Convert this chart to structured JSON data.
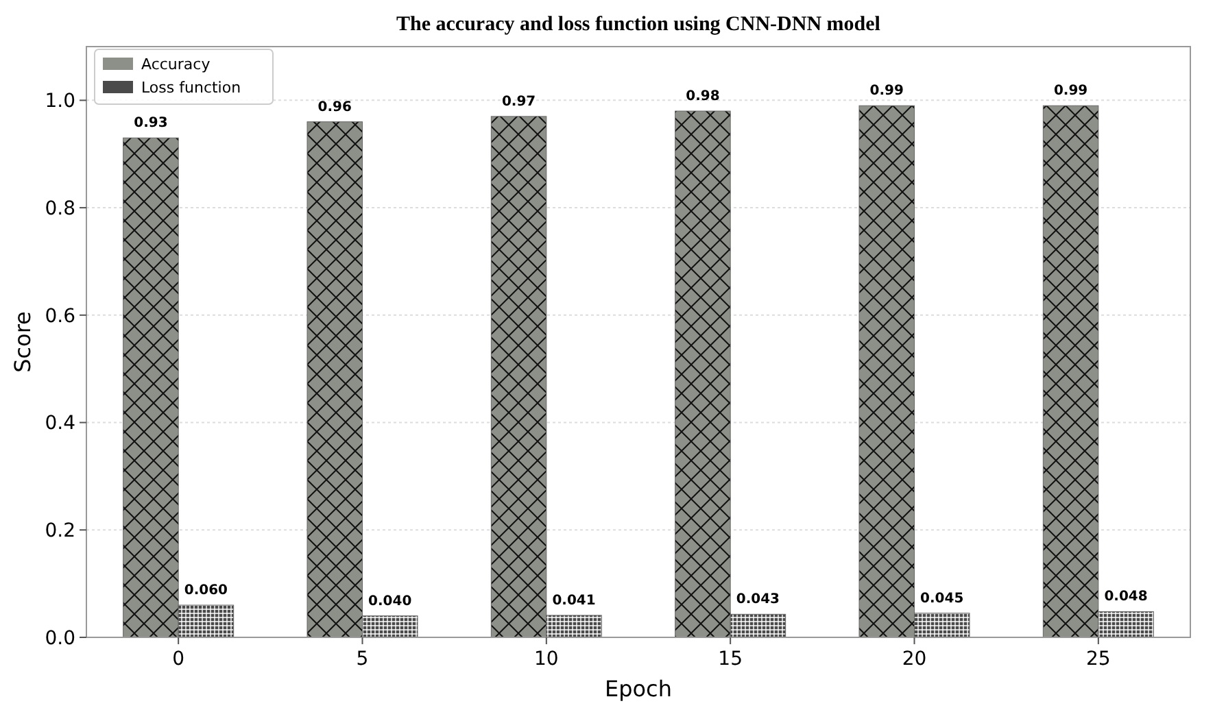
{
  "chart_data": {
    "type": "bar",
    "title": "The accuracy and loss function using CNN-DNN model",
    "xlabel": "Epoch",
    "ylabel": "Score",
    "categories": [
      "0",
      "5",
      "10",
      "15",
      "20",
      "25"
    ],
    "series": [
      {
        "name": "Accuracy",
        "color": "#8c9088",
        "values": [
          0.93,
          0.96,
          0.97,
          0.98,
          0.99,
          0.99
        ],
        "value_labels": [
          "0.93",
          "0.96",
          "0.97",
          "0.98",
          "0.99",
          "0.99"
        ]
      },
      {
        "name": "Loss function",
        "color": "#4a4a4a",
        "values": [
          0.06,
          0.04,
          0.041,
          0.043,
          0.045,
          0.048
        ],
        "value_labels": [
          "0.060",
          "0.040",
          "0.041",
          "0.043",
          "0.045",
          "0.048"
        ]
      }
    ],
    "ylim": [
      0,
      1.1
    ],
    "yticks": [
      {
        "value": 0,
        "label": "0.0"
      },
      0.2,
      0.4,
      0.6,
      0.8,
      {
        "value": 1,
        "label": "1.0"
      }
    ],
    "grid": "y",
    "legend": "top left"
  }
}
